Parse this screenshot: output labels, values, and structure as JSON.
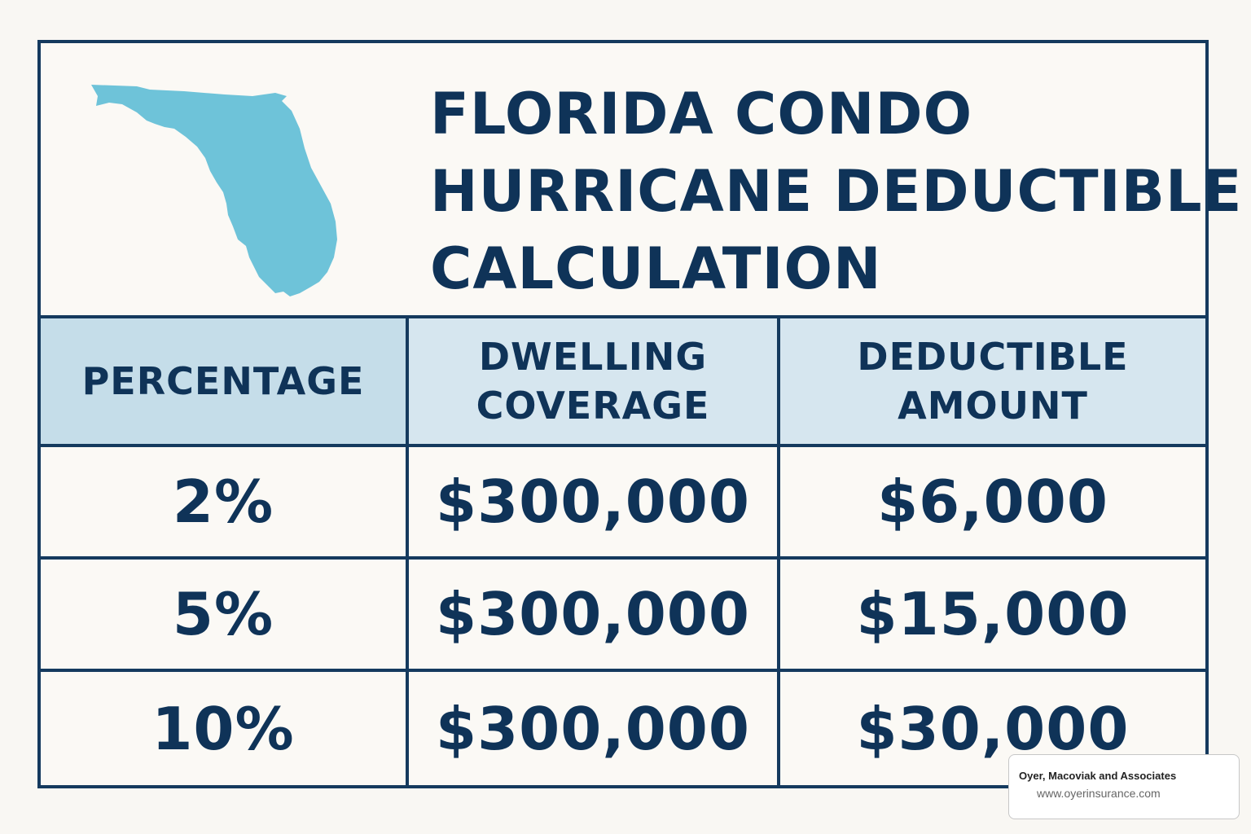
{
  "title_lines": [
    "FLORIDA CONDO",
    "HURRICANE DEDUCTIBLE",
    "CALCULATION"
  ],
  "table": {
    "headers": [
      "PERCENTAGE",
      "DWELLING\nCOVERAGE",
      "DEDUCTIBLE\nAMOUNT"
    ],
    "rows": [
      [
        "2%",
        "$300,000",
        "$6,000"
      ],
      [
        "5%",
        "$300,000",
        "$15,000"
      ],
      [
        "10%",
        "$300,000",
        "$30,000"
      ]
    ]
  },
  "watermark": {
    "name": "Oyer, Macoviak and Associates",
    "url": "www.oyerinsurance.com"
  },
  "colors": {
    "navy": "#153a5e",
    "map_blue": "#6ec3d9",
    "header_bg": "#d6e6ef"
  },
  "icons": {
    "map": "florida-state-map"
  }
}
